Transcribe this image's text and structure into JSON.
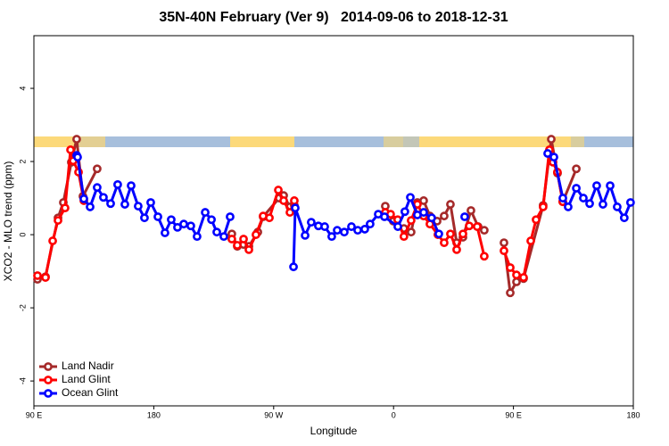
{
  "chart_data": {
    "type": "line",
    "title": "35N-40N February (Ver 9)   2014-09-06 to 2018-12-31",
    "xlabel": "Longitude",
    "ylabel": "XCO2 - MLO trend (ppm)",
    "xlim": [
      90,
      540
    ],
    "ylim": [
      -4.68,
      5.44
    ],
    "xticks": [
      {
        "value": 90,
        "label": "90 E"
      },
      180,
      {
        "value": 270,
        "label": "90 W"
      },
      {
        "value": 360,
        "label": "0"
      },
      {
        "value": 450,
        "label": "90 E"
      },
      {
        "value": 540,
        "label": "180"
      }
    ],
    "yticks": [
      -4,
      -2,
      0,
      2,
      4
    ],
    "grid": false,
    "legend": "bottom-left",
    "series": [
      {
        "name": "Land Nadir",
        "color": "#a52a2a",
        "x": [
          92.7,
          98.7,
          108.1,
          112.1,
          118.1,
          122.1,
          126.8,
          137.5,
          null,
          238.6,
          242.7,
          247.4,
          251.4,
          258.1,
          262.1,
          274.1,
          277.5,
          282.2,
          285.5,
          null,
          353.8,
          359.8,
          367.8,
          373.2,
          377.9,
          382.6,
          387.3,
          392.7,
          398,
          402.7,
          407.4,
          412.1,
          418.1,
          423.5,
          428.1,
          null,
          442.9,
          447.6,
          452.3,
          457.6,
          472.3,
          478.4,
          483.1,
          487.1,
          497.2
        ],
        "values": [
          -1.22,
          -1.15,
          0.46,
          0.88,
          1.98,
          2.61,
          1.05,
          1.8,
          null,
          0.02,
          -0.32,
          -0.27,
          -0.32,
          0.07,
          0.49,
          1.0,
          1.07,
          0.76,
          0.8,
          null,
          0.78,
          0.37,
          0.17,
          0.07,
          0.88,
          0.93,
          0.51,
          0.37,
          0.51,
          0.83,
          -0.22,
          -0.07,
          0.66,
          0.22,
          0.12,
          null,
          -0.22,
          -1.59,
          -1.29,
          -1.2,
          0.8,
          2.61,
          1.68,
          0.9,
          1.8
        ]
      },
      {
        "name": "Land Glint",
        "color": "#ff0000",
        "x": [
          92.7,
          98.7,
          104.1,
          108.1,
          113.4,
          117.5,
          119.5,
          123.5,
          127.5,
          null,
          238.6,
          242.7,
          247.4,
          251.4,
          256.7,
          262.1,
          266.8,
          273.5,
          277.5,
          282.2,
          285.5,
          null,
          353.8,
          357.8,
          363.1,
          367.8,
          373.2,
          377.9,
          382.6,
          387.3,
          393.3,
          398,
          402.7,
          407.4,
          412.1,
          416.8,
          422.8,
          428.1,
          null,
          442.9,
          447.6,
          452.3,
          457.6,
          463,
          467,
          472.3,
          477,
          479.7,
          483,
          487
        ],
        "values": [
          -1.12,
          -1.17,
          -0.17,
          0.39,
          0.73,
          2.32,
          2.02,
          1.71,
          0.93,
          null,
          -0.12,
          -0.29,
          -0.12,
          -0.41,
          0.0,
          0.51,
          0.46,
          1.22,
          0.93,
          0.61,
          0.93,
          null,
          0.61,
          0.56,
          0.41,
          -0.05,
          0.39,
          0.83,
          0.51,
          0.29,
          0.0,
          -0.22,
          0.02,
          -0.41,
          0.02,
          0.24,
          0.22,
          -0.59,
          null,
          -0.44,
          -0.9,
          -1.1,
          -1.17,
          -0.17,
          0.41,
          0.76,
          2.32,
          1.98,
          1.71,
          0.9
        ]
      },
      {
        "name": "Ocean Glint",
        "color": "#0000ff",
        "x": [
          122.1,
          122.8,
          127.5,
          132.2,
          137.5,
          142.2,
          147.6,
          152.9,
          158.3,
          163,
          168.3,
          173,
          177.7,
          183.1,
          188.4,
          193.1,
          197.8,
          202.5,
          207.8,
          212.5,
          218.6,
          223.3,
          227.3,
          232.6,
          237.3,
          null,
          284.9,
          286.2,
          293.6,
          298.2,
          303.6,
          308.3,
          313.6,
          317.7,
          323,
          328.4,
          333.1,
          338.4,
          342.4,
          348.5,
          353.2,
          363.2,
          368.5,
          372.6,
          377.9,
          382.6,
          388.6,
          394,
          null,
          413.4,
          null,
          475.7,
          480.4,
          487.1,
          491.1,
          497.2,
          502.5,
          507.2,
          512.5,
          517.2,
          522.6,
          527.9,
          533.2,
          537.9
        ],
        "values": [
          2.17,
          2.12,
          0.98,
          0.76,
          1.29,
          1.02,
          0.85,
          1.37,
          0.83,
          1.34,
          0.78,
          0.46,
          0.88,
          0.49,
          0.05,
          0.41,
          0.2,
          0.29,
          0.24,
          -0.05,
          0.61,
          0.41,
          0.07,
          -0.05,
          0.49,
          null,
          -0.88,
          0.73,
          -0.02,
          0.34,
          0.24,
          0.22,
          -0.05,
          0.12,
          0.07,
          0.22,
          0.12,
          0.15,
          0.29,
          0.56,
          0.49,
          0.22,
          0.63,
          1.02,
          0.54,
          0.61,
          0.46,
          0.02,
          null,
          0.49,
          null,
          2.22,
          2.12,
          1.0,
          0.76,
          1.27,
          1.0,
          0.85,
          1.34,
          0.83,
          1.34,
          0.76,
          0.46,
          0.88
        ]
      }
    ]
  }
}
